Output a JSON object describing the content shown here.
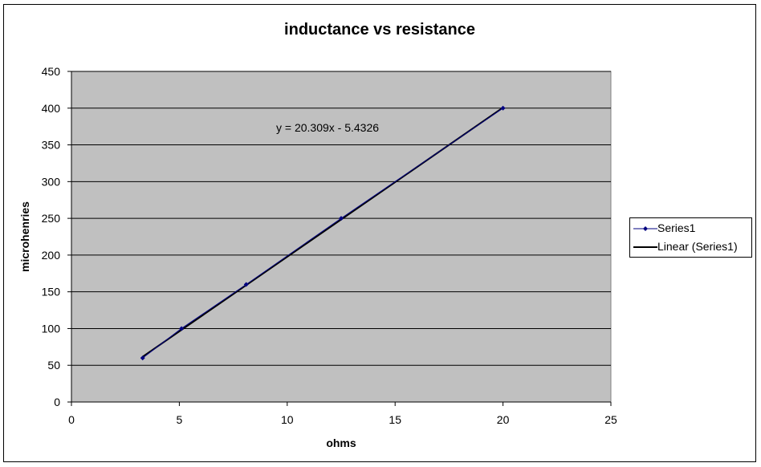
{
  "chart_data": {
    "type": "scatter",
    "title": "inductance vs resistance",
    "xlabel": "ohms",
    "ylabel": "microhenries",
    "xlim": [
      0,
      25
    ],
    "ylim": [
      0,
      450
    ],
    "xticks": [
      0,
      5,
      10,
      15,
      20,
      25
    ],
    "yticks": [
      0,
      50,
      100,
      150,
      200,
      250,
      300,
      350,
      400,
      450
    ],
    "grid": "horizontal",
    "legend_position": "right",
    "plot_background": "#c0c0c0",
    "series": [
      {
        "name": "Series1",
        "color": "#000080",
        "marker": "diamond",
        "x": [
          3.3,
          5.1,
          8.1,
          12.5,
          20
        ],
        "y": [
          60,
          100,
          160,
          250,
          400
        ]
      }
    ],
    "trendline": {
      "name": "Linear (Series1)",
      "color": "#000000",
      "slope": 20.309,
      "intercept": -5.4326,
      "x_range": [
        3.3,
        20
      ],
      "equation": "y = 20.309x - 5.4326"
    }
  }
}
